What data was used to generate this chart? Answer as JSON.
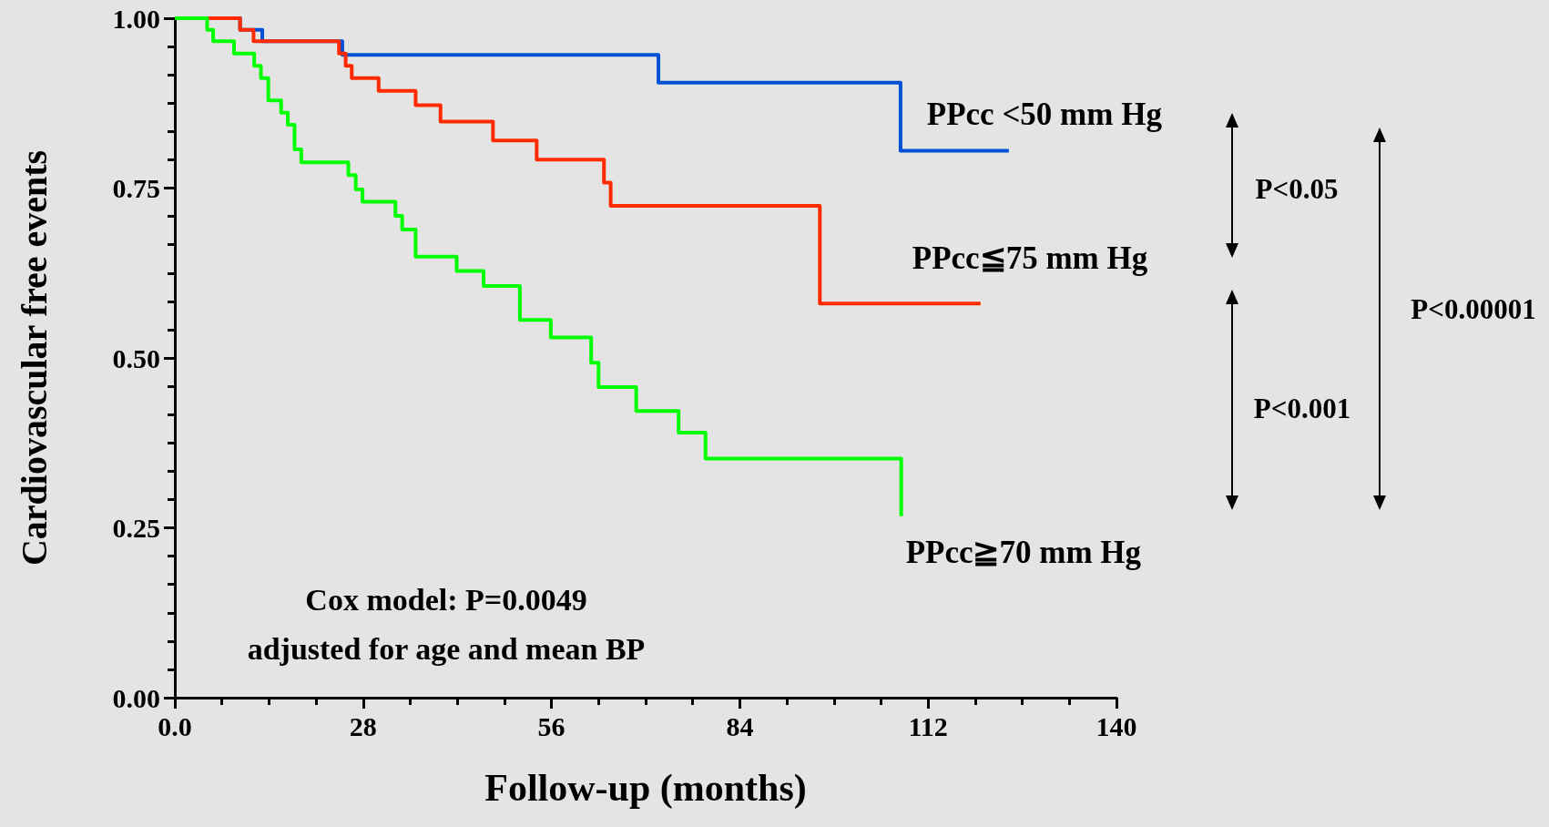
{
  "chart_data": {
    "type": "step",
    "xlabel": "Follow-up (months)",
    "ylabel": "Cardiovascular free events",
    "xlim": [
      0,
      140
    ],
    "xticks": [
      {
        "value": 0,
        "label": "0.0"
      },
      28,
      56,
      84,
      112,
      140
    ],
    "ylim": [
      0,
      1
    ],
    "yticks": [
      {
        "value": 0,
        "label": "0.00"
      },
      {
        "value": 0.25,
        "label": "0.25"
      },
      {
        "value": 0.5,
        "label": "0.50"
      },
      {
        "value": 0.75,
        "label": "0.75"
      },
      {
        "value": 1,
        "label": "1.00"
      }
    ],
    "grid": false,
    "legend": false,
    "marker": "none",
    "line_style": "solid",
    "series": [
      {
        "name": "PPcc <50 mm Hg",
        "color": "#0050d8",
        "x": [
          0,
          9.7,
          13,
          24.9,
          71.9,
          107.9,
          124
        ],
        "values": [
          1,
          0.983,
          0.966,
          0.946,
          0.905,
          0.805,
          0.805
        ]
      },
      {
        "name": "PPcc≦75 mm Hg",
        "color": "#ff2a00",
        "x": [
          0,
          9.7,
          11.7,
          24.4,
          25.4,
          26.3,
          30.3,
          35.8,
          39.5,
          47.3,
          53.8,
          63.8,
          64.8,
          95.9,
          119.8
        ],
        "values": [
          1,
          0.983,
          0.966,
          0.948,
          0.93,
          0.912,
          0.893,
          0.872,
          0.848,
          0.82,
          0.792,
          0.758,
          0.724,
          0.58,
          0.58
        ]
      },
      {
        "name": "PPcc≧70 mm Hg",
        "color": "#00ff00",
        "x": [
          0,
          4.8,
          5.7,
          8.8,
          11.8,
          12.8,
          13.9,
          15.8,
          16.8,
          17.8,
          18.8,
          25.8,
          26.9,
          27.9,
          32.8,
          33.8,
          35.8,
          41.9,
          45.9,
          51.3,
          55.9,
          61.9,
          63,
          68.6,
          74.9,
          78.9,
          108
        ],
        "values": [
          1,
          0.983,
          0.966,
          0.948,
          0.93,
          0.912,
          0.879,
          0.861,
          0.843,
          0.807,
          0.788,
          0.769,
          0.748,
          0.73,
          0.709,
          0.689,
          0.649,
          0.628,
          0.606,
          0.556,
          0.53,
          0.493,
          0.457,
          0.422,
          0.39,
          0.352,
          0.267
        ]
      }
    ],
    "annotations": [
      "P<0.05",
      "P<0.001",
      "P<0.00001",
      "Cox model: P=0.0049",
      "adjusted for age and mean BP"
    ]
  }
}
